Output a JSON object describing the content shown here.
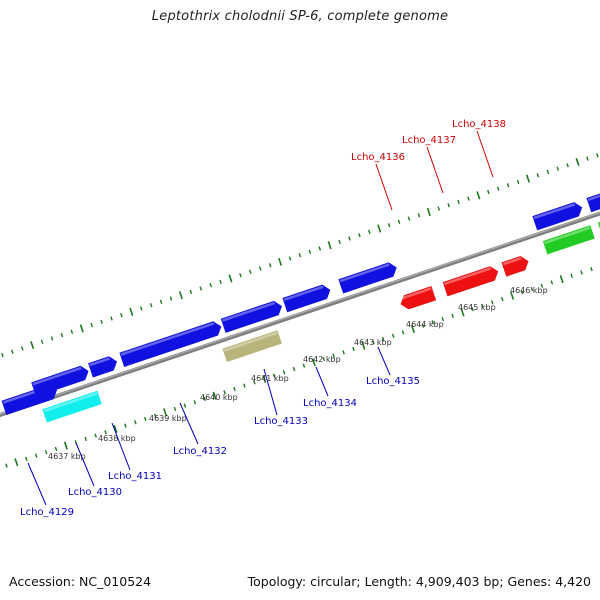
{
  "title": "Leptothrix cholodnii SP-6, complete genome",
  "footer": {
    "accession": "Accession: NC_010524",
    "summary": "Topology: circular; Length: 4,909,403 bp; Genes: 4,420"
  },
  "colors": {
    "forward_gene": "#1010e0",
    "reverse_gene": "#1010e0",
    "red_gene": "#ee1111",
    "cyan_gene": "#11eeee",
    "green_gene": "#22cc22",
    "tan_gene": "#b9b47a",
    "backbone": "#808080",
    "tick": "#1b7a1b",
    "label_blue": "#0000bb",
    "label_red": "#cc0000"
  },
  "scale": {
    "tick_labels": [
      {
        "text": "4637 kbp",
        "pos": 4637
      },
      {
        "text": "4638 kbp",
        "pos": 4638
      },
      {
        "text": "4639 kbp",
        "pos": 4639
      },
      {
        "text": "4640 kbp",
        "pos": 4640
      },
      {
        "text": "4641 kbp",
        "pos": 4641
      },
      {
        "text": "4642 kbp",
        "pos": 4642
      },
      {
        "text": "4643 kbp",
        "pos": 4643
      },
      {
        "text": "4644 kbp",
        "pos": 4644
      },
      {
        "text": "4645 kbp",
        "pos": 4645
      },
      {
        "text": "4646 kbp",
        "pos": 4646
      }
    ]
  },
  "gene_labels": [
    {
      "text": "Lcho_4129",
      "color": "label_blue"
    },
    {
      "text": "Lcho_4130",
      "color": "label_blue"
    },
    {
      "text": "Lcho_4131",
      "color": "label_blue"
    },
    {
      "text": "Lcho_4132",
      "color": "label_blue"
    },
    {
      "text": "Lcho_4133",
      "color": "label_blue"
    },
    {
      "text": "Lcho_4134",
      "color": "label_blue"
    },
    {
      "text": "Lcho_4135",
      "color": "label_blue"
    },
    {
      "text": "Lcho_4136",
      "color": "label_red"
    },
    {
      "text": "Lcho_4137",
      "color": "label_red"
    },
    {
      "text": "Lcho_4138",
      "color": "label_red"
    }
  ]
}
